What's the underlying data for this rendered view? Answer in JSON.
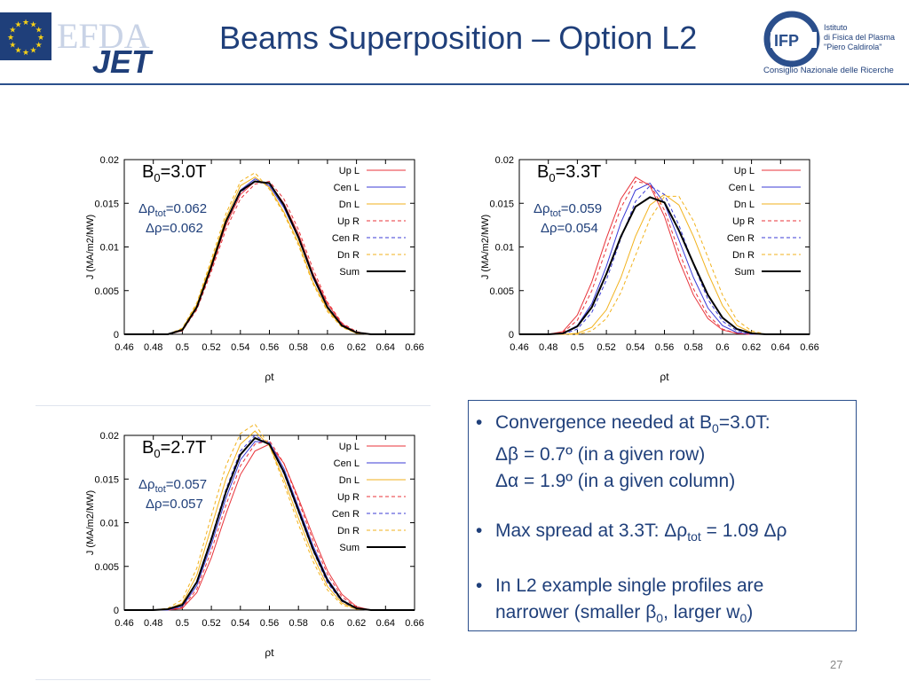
{
  "header": {
    "title": "Beams Superposition – Option L2",
    "efda_logo": {
      "text_efda": "EFDA",
      "text_jet": "JET",
      "stars_color": "#f7d117",
      "flag_color": "#1f3f7a"
    },
    "ifp_logo": {
      "mark": "IFP",
      "lines": [
        "Istituto",
        "di Fisica del Plasma",
        "\"Piero Caldirola\"",
        "Consiglio Nazionale delle Ricerche"
      ]
    }
  },
  "legend": [
    "Up L",
    "Cen L",
    "Dn L",
    "Up R",
    "Cen R",
    "Dn R",
    "Sum"
  ],
  "colors": {
    "red": "#e8333a",
    "blue": "#3b3bd6",
    "orange": "#f2b21c",
    "sum": "#000000",
    "title": "#1f3f7a"
  },
  "chart_data": [
    {
      "type": "line",
      "xlabel": "ρt",
      "ylabel": "J (MA/m2/MW)",
      "xlim": [
        0.46,
        0.66
      ],
      "ylim": [
        0,
        0.02
      ],
      "xticks": [
        "0.46",
        "0.48",
        "0.5",
        "0.52",
        "0.54",
        "0.56",
        "0.58",
        "0.6",
        "0.62",
        "0.64",
        "0.66"
      ],
      "yticks": [
        "0",
        "0.005",
        "0.01",
        "0.015",
        "0.02"
      ],
      "annotations": {
        "b0": "B0=3.0T",
        "drho_tot": "Δρtot=0.062",
        "drho": "Δρ=0.062"
      },
      "x": [
        0.46,
        0.47,
        0.48,
        0.49,
        0.5,
        0.51,
        0.52,
        0.53,
        0.54,
        0.55,
        0.56,
        0.57,
        0.58,
        0.59,
        0.6,
        0.61,
        0.62,
        0.63,
        0.64,
        0.65,
        0.66
      ],
      "series": [
        {
          "name": "Up L",
          "values": [
            0,
            0,
            0,
            0,
            0.0004,
            0.003,
            0.0075,
            0.0125,
            0.016,
            0.0175,
            0.0173,
            0.015,
            0.0115,
            0.007,
            0.0035,
            0.0012,
            0.0002,
            0,
            0,
            0,
            0
          ]
        },
        {
          "name": "Cen L",
          "values": [
            0,
            0,
            0,
            0,
            0.0005,
            0.0032,
            0.008,
            0.013,
            0.0165,
            0.0178,
            0.017,
            0.0145,
            0.011,
            0.0065,
            0.003,
            0.001,
            0.0002,
            0,
            0,
            0,
            0
          ]
        },
        {
          "name": "Dn L",
          "values": [
            0,
            0,
            0,
            0,
            0.0006,
            0.0034,
            0.0082,
            0.0133,
            0.017,
            0.018,
            0.0168,
            0.014,
            0.0105,
            0.006,
            0.0028,
            0.0009,
            0.0001,
            0,
            0,
            0,
            0
          ]
        },
        {
          "name": "Up R",
          "values": [
            0,
            0,
            0,
            0,
            0.0004,
            0.0028,
            0.0072,
            0.012,
            0.0155,
            0.0172,
            0.0175,
            0.0155,
            0.012,
            0.0075,
            0.0037,
            0.0013,
            0.0003,
            0,
            0,
            0,
            0
          ]
        },
        {
          "name": "Cen R",
          "values": [
            0,
            0,
            0,
            0,
            0.0005,
            0.0031,
            0.0078,
            0.0128,
            0.0162,
            0.0176,
            0.0172,
            0.0148,
            0.0112,
            0.0068,
            0.0032,
            0.0011,
            0.0002,
            0,
            0,
            0,
            0
          ]
        },
        {
          "name": "Dn R",
          "values": [
            0,
            0,
            0,
            0,
            0.0007,
            0.0036,
            0.0086,
            0.0138,
            0.0175,
            0.0185,
            0.0166,
            0.0138,
            0.0102,
            0.0058,
            0.0026,
            0.0008,
            0.0001,
            0,
            0,
            0,
            0
          ]
        },
        {
          "name": "Sum",
          "values": [
            0,
            0,
            0,
            0,
            0.0005,
            0.0031,
            0.0078,
            0.0129,
            0.0164,
            0.0175,
            0.0173,
            0.0148,
            0.0111,
            0.0067,
            0.0031,
            0.001,
            0.0002,
            0,
            0,
            0,
            0
          ]
        }
      ]
    },
    {
      "type": "line",
      "xlabel": "ρt",
      "ylabel": "J (MA/m2/MW)",
      "xlim": [
        0.46,
        0.66
      ],
      "ylim": [
        0,
        0.02
      ],
      "xticks": [
        "0.46",
        "0.48",
        "0.5",
        "0.52",
        "0.54",
        "0.56",
        "0.58",
        "0.6",
        "0.62",
        "0.64",
        "0.66"
      ],
      "yticks": [
        "0",
        "0.005",
        "0.01",
        "0.015",
        "0.02"
      ],
      "annotations": {
        "b0": "B0=3.3T",
        "drho_tot": "Δρtot=0.059",
        "drho": "Δρ=0.054"
      },
      "x": [
        0.46,
        0.47,
        0.48,
        0.49,
        0.5,
        0.51,
        0.52,
        0.53,
        0.54,
        0.55,
        0.56,
        0.57,
        0.58,
        0.59,
        0.6,
        0.61,
        0.62,
        0.63,
        0.64,
        0.65,
        0.66
      ],
      "series": [
        {
          "name": "Up L",
          "values": [
            0,
            0,
            0,
            0.0003,
            0.0022,
            0.006,
            0.011,
            0.0155,
            0.018,
            0.017,
            0.0135,
            0.0085,
            0.0045,
            0.0018,
            0.0005,
            0.0001,
            0,
            0,
            0,
            0,
            0
          ]
        },
        {
          "name": "Cen L",
          "values": [
            0,
            0,
            0,
            0.0001,
            0.001,
            0.0035,
            0.0078,
            0.0128,
            0.0165,
            0.0173,
            0.015,
            0.0108,
            0.0065,
            0.003,
            0.001,
            0.0002,
            0,
            0,
            0,
            0,
            0
          ]
        },
        {
          "name": "Dn L",
          "values": [
            0,
            0,
            0,
            0,
            0.0001,
            0.0008,
            0.0028,
            0.0065,
            0.0112,
            0.0148,
            0.016,
            0.0148,
            0.0112,
            0.007,
            0.0033,
            0.001,
            0.0002,
            0,
            0,
            0,
            0
          ]
        },
        {
          "name": "Up R",
          "values": [
            0,
            0,
            0,
            0.0002,
            0.0016,
            0.005,
            0.0098,
            0.0145,
            0.0175,
            0.0172,
            0.0142,
            0.0095,
            0.0052,
            0.0022,
            0.0006,
            0.0001,
            0,
            0,
            0,
            0,
            0
          ]
        },
        {
          "name": "Cen R",
          "values": [
            0,
            0,
            0,
            0,
            0.0006,
            0.0025,
            0.0062,
            0.011,
            0.0152,
            0.017,
            0.016,
            0.0125,
            0.008,
            0.004,
            0.0015,
            0.0004,
            0,
            0,
            0,
            0,
            0
          ]
        },
        {
          "name": "Dn R",
          "values": [
            0,
            0,
            0,
            0,
            0,
            0.0004,
            0.0018,
            0.0048,
            0.009,
            0.0132,
            0.0158,
            0.0158,
            0.013,
            0.0088,
            0.0045,
            0.0016,
            0.0004,
            0,
            0,
            0,
            0
          ]
        },
        {
          "name": "Sum",
          "values": [
            0,
            0,
            0,
            0.0001,
            0.0009,
            0.0031,
            0.0069,
            0.0112,
            0.0146,
            0.0157,
            0.0151,
            0.0119,
            0.0081,
            0.0045,
            0.0019,
            0.0006,
            0.0001,
            0,
            0,
            0,
            0
          ]
        }
      ]
    },
    {
      "type": "line",
      "xlabel": "ρt",
      "ylabel": "J (MA/m2/MW)",
      "xlim": [
        0.46,
        0.66
      ],
      "ylim": [
        0,
        0.02
      ],
      "xticks": [
        "0.46",
        "0.48",
        "0.5",
        "0.52",
        "0.54",
        "0.56",
        "0.58",
        "0.6",
        "0.62",
        "0.64",
        "0.66"
      ],
      "yticks": [
        "0",
        "0.005",
        "0.01",
        "0.015",
        "0.02"
      ],
      "annotations": {
        "b0": "B0=2.7T",
        "drho_tot": "Δρtot=0.057",
        "drho": "Δρ=0.057"
      },
      "x": [
        0.46,
        0.47,
        0.48,
        0.49,
        0.5,
        0.51,
        0.52,
        0.53,
        0.54,
        0.55,
        0.56,
        0.57,
        0.58,
        0.59,
        0.6,
        0.61,
        0.62,
        0.63,
        0.64,
        0.65,
        0.66
      ],
      "series": [
        {
          "name": "Up L",
          "values": [
            0,
            0,
            0,
            0,
            0.0002,
            0.002,
            0.006,
            0.011,
            0.0155,
            0.0182,
            0.019,
            0.0168,
            0.0128,
            0.0085,
            0.0045,
            0.0018,
            0.0004,
            0,
            0,
            0,
            0
          ]
        },
        {
          "name": "Cen L",
          "values": [
            0,
            0,
            0,
            0,
            0.0004,
            0.0028,
            0.0075,
            0.0128,
            0.0172,
            0.0193,
            0.0192,
            0.0162,
            0.0118,
            0.0074,
            0.0036,
            0.0012,
            0.0002,
            0,
            0,
            0,
            0
          ]
        },
        {
          "name": "Dn L",
          "values": [
            0,
            0,
            0,
            0.0001,
            0.0008,
            0.004,
            0.0095,
            0.015,
            0.019,
            0.0205,
            0.0188,
            0.015,
            0.0105,
            0.0062,
            0.0027,
            0.0008,
            0.0001,
            0,
            0,
            0,
            0
          ]
        },
        {
          "name": "Up R",
          "values": [
            0,
            0,
            0,
            0,
            0.0003,
            0.0024,
            0.0068,
            0.012,
            0.0165,
            0.019,
            0.0194,
            0.0168,
            0.0125,
            0.008,
            0.0041,
            0.0015,
            0.0003,
            0,
            0,
            0,
            0
          ]
        },
        {
          "name": "Cen R",
          "values": [
            0,
            0,
            0,
            0,
            0.0006,
            0.0033,
            0.0083,
            0.0138,
            0.0182,
            0.02,
            0.019,
            0.0156,
            0.0112,
            0.0068,
            0.0031,
            0.001,
            0.0001,
            0,
            0,
            0,
            0
          ]
        },
        {
          "name": "Dn R",
          "values": [
            0,
            0,
            0,
            0.0002,
            0.0012,
            0.0048,
            0.0108,
            0.0165,
            0.0202,
            0.0213,
            0.0188,
            0.0145,
            0.0098,
            0.0056,
            0.0023,
            0.0006,
            0.0001,
            0,
            0,
            0,
            0
          ]
        },
        {
          "name": "Sum",
          "values": [
            0,
            0,
            0,
            0.0001,
            0.0006,
            0.0032,
            0.0081,
            0.0135,
            0.0178,
            0.0197,
            0.019,
            0.0158,
            0.0114,
            0.007,
            0.0034,
            0.0011,
            0.0002,
            0,
            0,
            0,
            0
          ]
        }
      ]
    }
  ],
  "bullets": [
    {
      "line1_pre": "Convergence needed at B",
      "line1_sub": "0",
      "line1_post": "=3.0T:",
      "line2": "Δβ = 0.7º (in a given row)",
      "line3": "Δα = 1.9º (in a given column)"
    },
    {
      "pre": "Max spread at 3.3T: Δρ",
      "sub": "tot",
      "post": " = 1.09 Δρ"
    },
    {
      "line1": "In L2 example single profiles are",
      "line2_pre": "narrower (smaller β",
      "line2_sub1": "0",
      "line2_mid": ", larger w",
      "line2_sub2": "0",
      "line2_post": ")"
    }
  ],
  "page_number": "27"
}
